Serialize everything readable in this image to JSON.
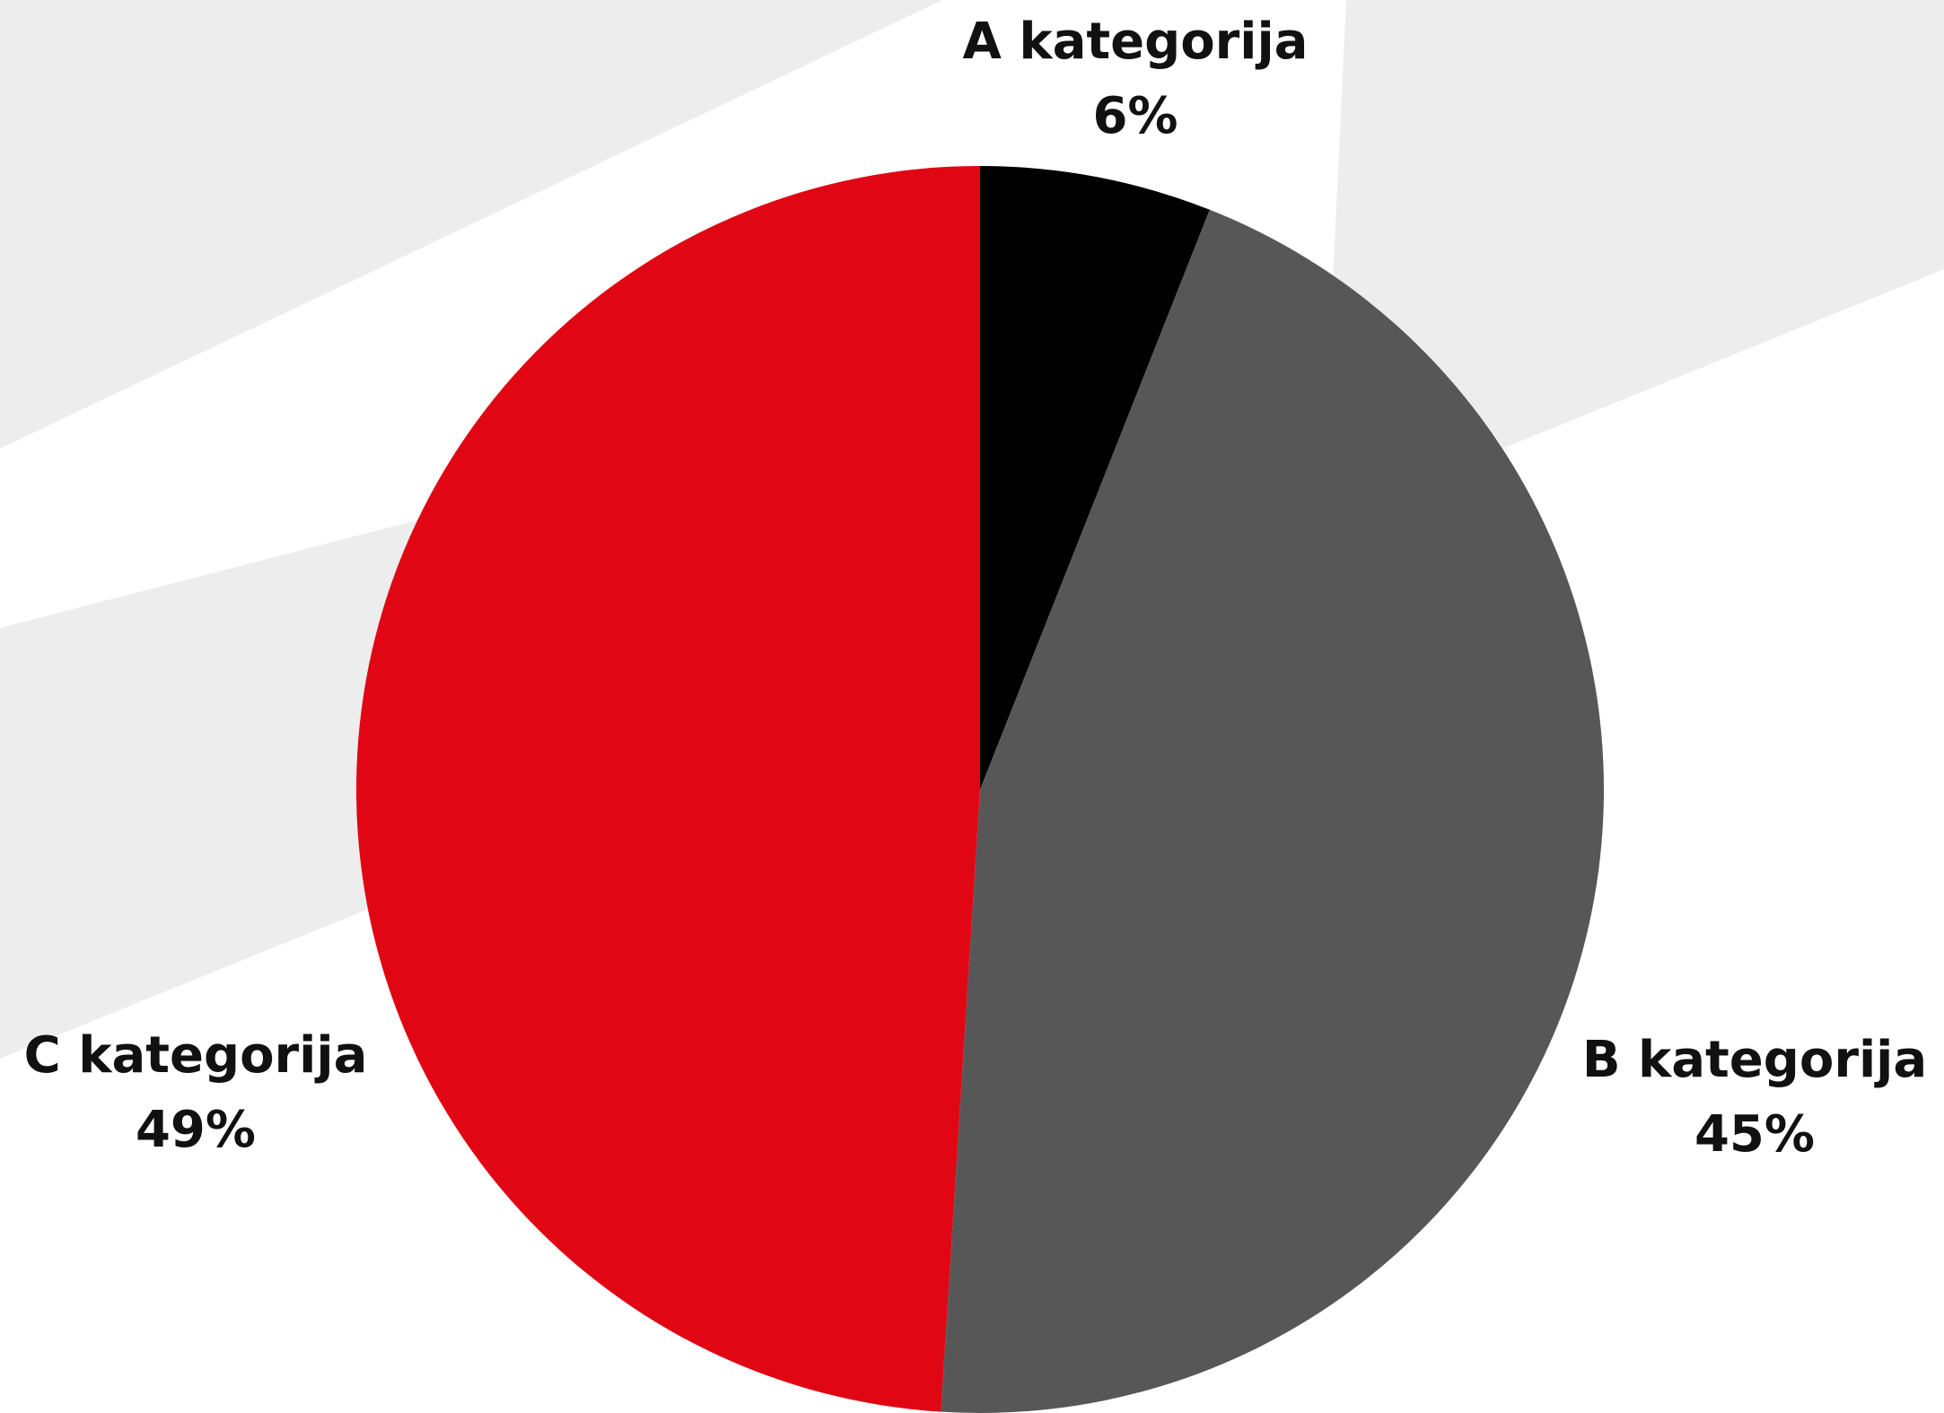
{
  "chart_data": {
    "type": "pie",
    "title": "",
    "start_angle_deg": 0,
    "direction": "clockwise",
    "slices": [
      {
        "name": "A kategorija",
        "value": 6,
        "label": "6%",
        "color": "#000000"
      },
      {
        "name": "B kategorija",
        "value": 45,
        "label": "45%",
        "color": "#575757"
      },
      {
        "name": "C kategorija",
        "value": 49,
        "label": "49%",
        "color": "#E10613"
      }
    ],
    "legend": "none",
    "labels": "outside"
  },
  "background": {
    "base_color": "#FFFFFF",
    "band_color": "#EDEDED"
  }
}
